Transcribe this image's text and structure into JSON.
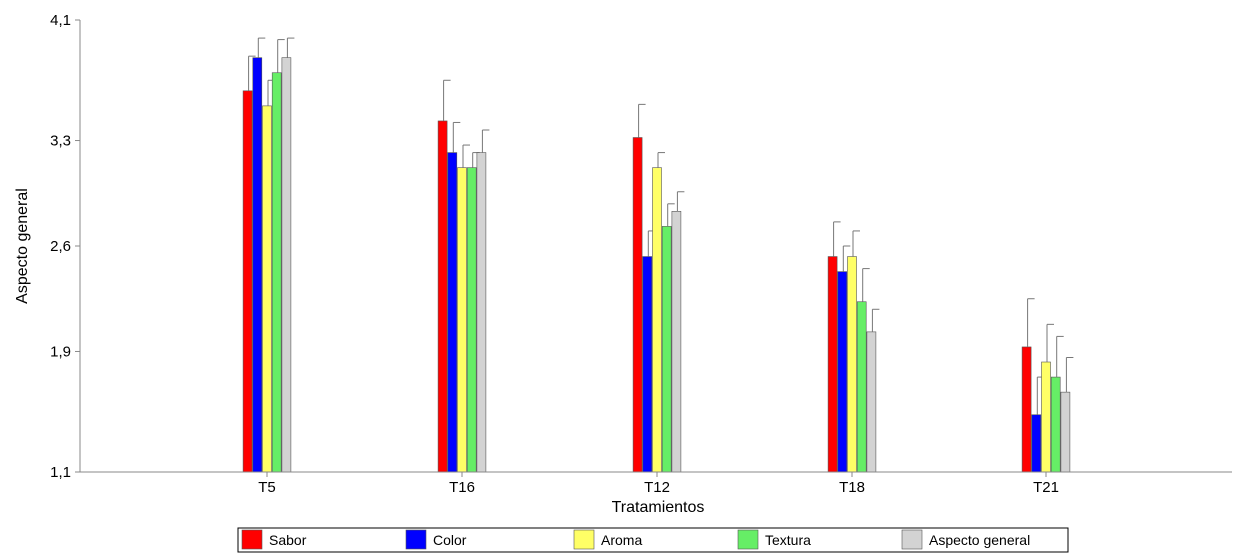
{
  "chart_data": {
    "type": "bar",
    "title": "",
    "xlabel": "Tratamientos",
    "ylabel": "Aspecto general",
    "ylim": [
      1.1,
      4.1
    ],
    "yticks": [
      "1,1",
      "1,9",
      "2,6",
      "3,3",
      "4,1"
    ],
    "ytick_values": [
      1.1,
      1.9,
      2.6,
      3.3,
      4.1
    ],
    "categories": [
      "T5",
      "T16",
      "T12",
      "T18",
      "T21"
    ],
    "legend_position": "bottom",
    "series": [
      {
        "name": "Sabor",
        "color": "#ff0000",
        "values": [
          3.63,
          3.43,
          3.32,
          2.53,
          1.93
        ],
        "errors": [
          0.23,
          0.27,
          0.22,
          0.23,
          0.32
        ]
      },
      {
        "name": "Color",
        "color": "#0000ff",
        "values": [
          3.85,
          3.22,
          2.53,
          2.43,
          1.48
        ],
        "errors": [
          0.13,
          0.2,
          0.17,
          0.17,
          0.25
        ]
      },
      {
        "name": "Aroma",
        "color": "#ffff66",
        "values": [
          3.53,
          3.12,
          3.12,
          2.53,
          1.83
        ],
        "errors": [
          0.17,
          0.15,
          0.1,
          0.17,
          0.25
        ]
      },
      {
        "name": "Textura",
        "color": "#66ee66",
        "values": [
          3.75,
          3.12,
          2.73,
          2.23,
          1.73
        ],
        "errors": [
          0.22,
          0.1,
          0.15,
          0.22,
          0.27
        ]
      },
      {
        "name": "Aspecto general",
        "color": "#d3d3d3",
        "values": [
          3.85,
          3.22,
          2.83,
          2.03,
          1.63
        ],
        "errors": [
          0.13,
          0.15,
          0.13,
          0.15,
          0.23
        ]
      }
    ]
  }
}
